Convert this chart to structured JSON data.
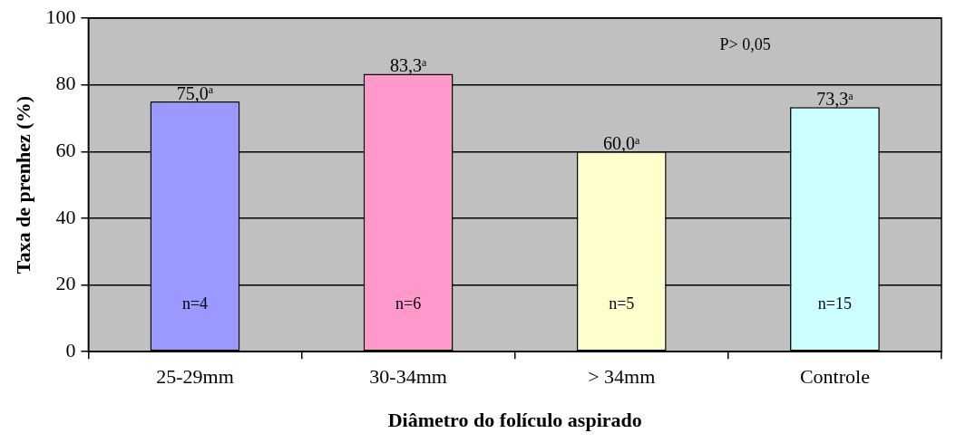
{
  "chart_data": {
    "type": "bar",
    "xlabel": "Diâmetro do folículo aspirado",
    "ylabel": "Taxa de prenhez (%)",
    "categories": [
      "25-29mm",
      "30-34mm",
      "> 34mm",
      "Controle"
    ],
    "values": [
      75.0,
      83.3,
      60.0,
      73.3
    ],
    "colors": [
      "#9999ff",
      "#ff99cc",
      "#ffffcc",
      "#ccffff"
    ],
    "value_labels": [
      "75,0$^{a}$",
      "83,3$^{a}$",
      "60,0$^{a}$",
      "73,3$^{a}$"
    ],
    "ylim": [
      0,
      100
    ],
    "yticks": [
      0,
      20,
      40,
      60,
      80,
      100
    ],
    "grid": "y",
    "legend": false,
    "annotations": [
      "P> 0,05",
      "n=4",
      "n=6",
      "n=5",
      "n=15"
    ]
  }
}
